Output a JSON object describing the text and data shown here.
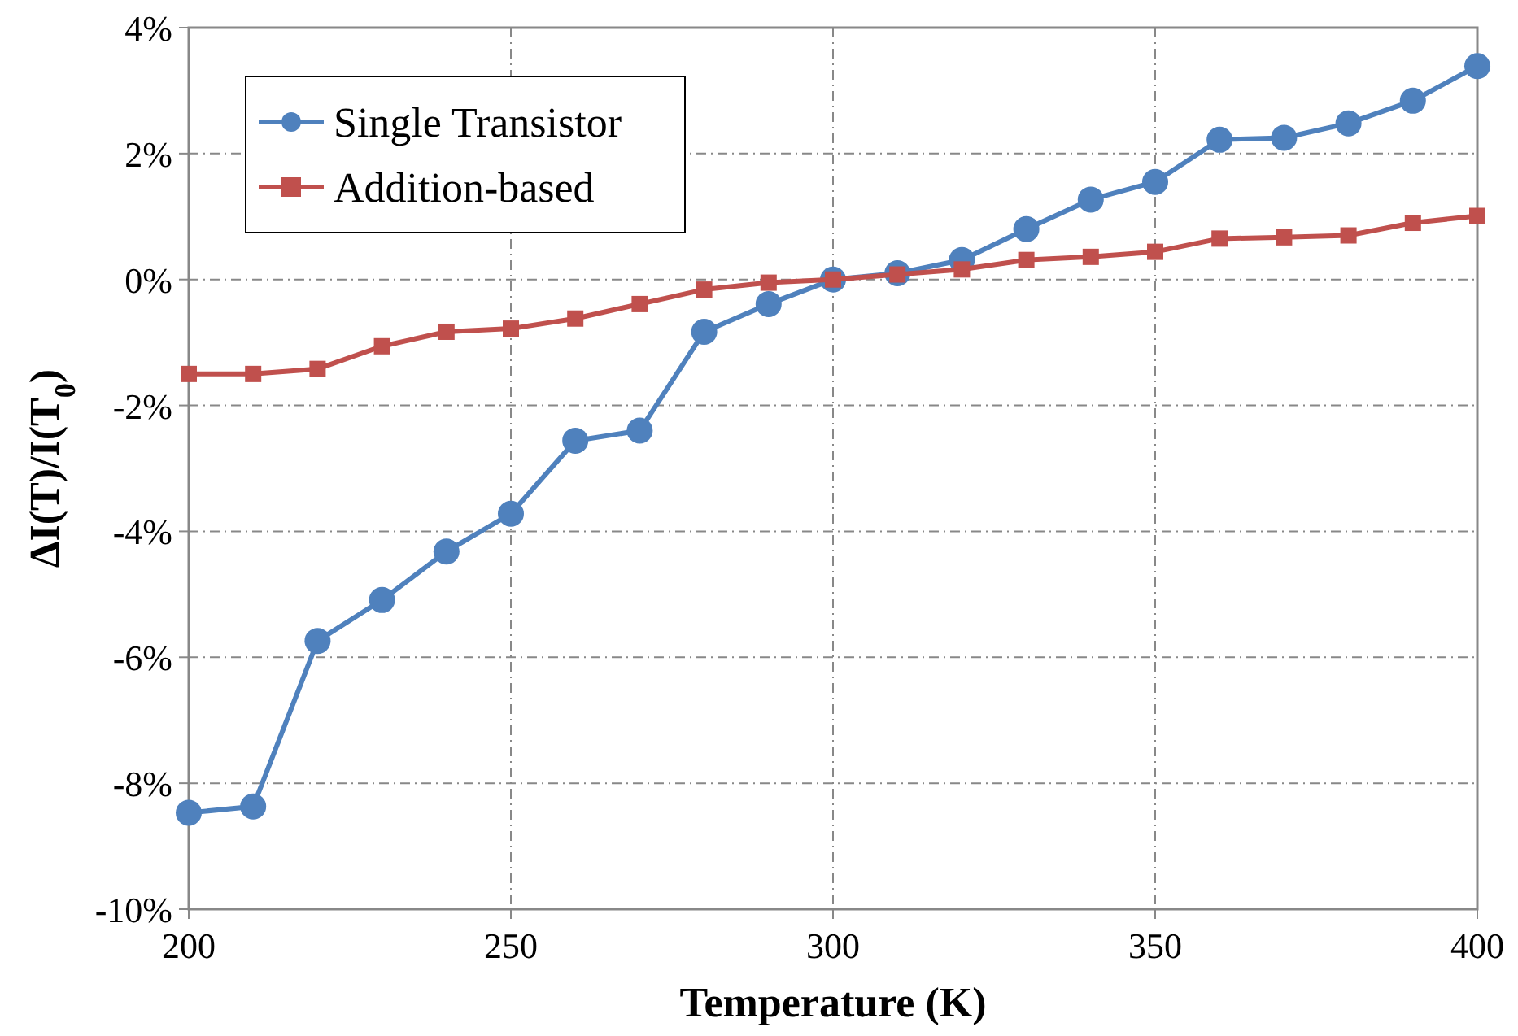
{
  "chart_data": {
    "type": "line",
    "xlabel": "Temperature (K)",
    "ylabel": "ΔI(T)/I(T$_{0}$)",
    "x": [
      200,
      210,
      220,
      230,
      240,
      250,
      260,
      270,
      280,
      290,
      300,
      310,
      320,
      330,
      340,
      350,
      360,
      370,
      380,
      390,
      400
    ],
    "series": [
      {
        "name": "Single Transistor",
        "color": "#4f81bd",
        "marker": "circle",
        "values": [
          -8.47,
          -8.37,
          -5.74,
          -5.09,
          -4.32,
          -3.72,
          -2.56,
          -2.4,
          -0.83,
          -0.39,
          0,
          0.1,
          0.31,
          0.8,
          1.27,
          1.55,
          2.22,
          2.25,
          2.48,
          2.84,
          3.39
        ]
      },
      {
        "name": "Addition-based",
        "color": "#c0504d",
        "marker": "square",
        "values": [
          -1.5,
          -1.5,
          -1.42,
          -1.06,
          -0.83,
          -0.78,
          -0.62,
          -0.39,
          -0.16,
          -0.05,
          0,
          0.08,
          0.16,
          0.31,
          0.36,
          0.44,
          0.65,
          0.67,
          0.7,
          0.9,
          1.01
        ]
      }
    ],
    "xlim": [
      200,
      400
    ],
    "xticks": [
      200,
      250,
      300,
      350,
      400
    ],
    "ylim": [
      -10,
      4
    ],
    "yticks": [
      {
        "value": -10,
        "label": "-10%"
      },
      {
        "value": -8,
        "label": "-8%"
      },
      {
        "value": -6,
        "label": "-6%"
      },
      {
        "value": -4,
        "label": "-4%"
      },
      {
        "value": -2,
        "label": "-2%"
      },
      {
        "value": 0,
        "label": "0%"
      },
      {
        "value": 2,
        "label": "2%"
      },
      {
        "value": 4,
        "label": "4%"
      }
    ],
    "grid": true,
    "legend": "top left",
    "line_style": "solid"
  }
}
